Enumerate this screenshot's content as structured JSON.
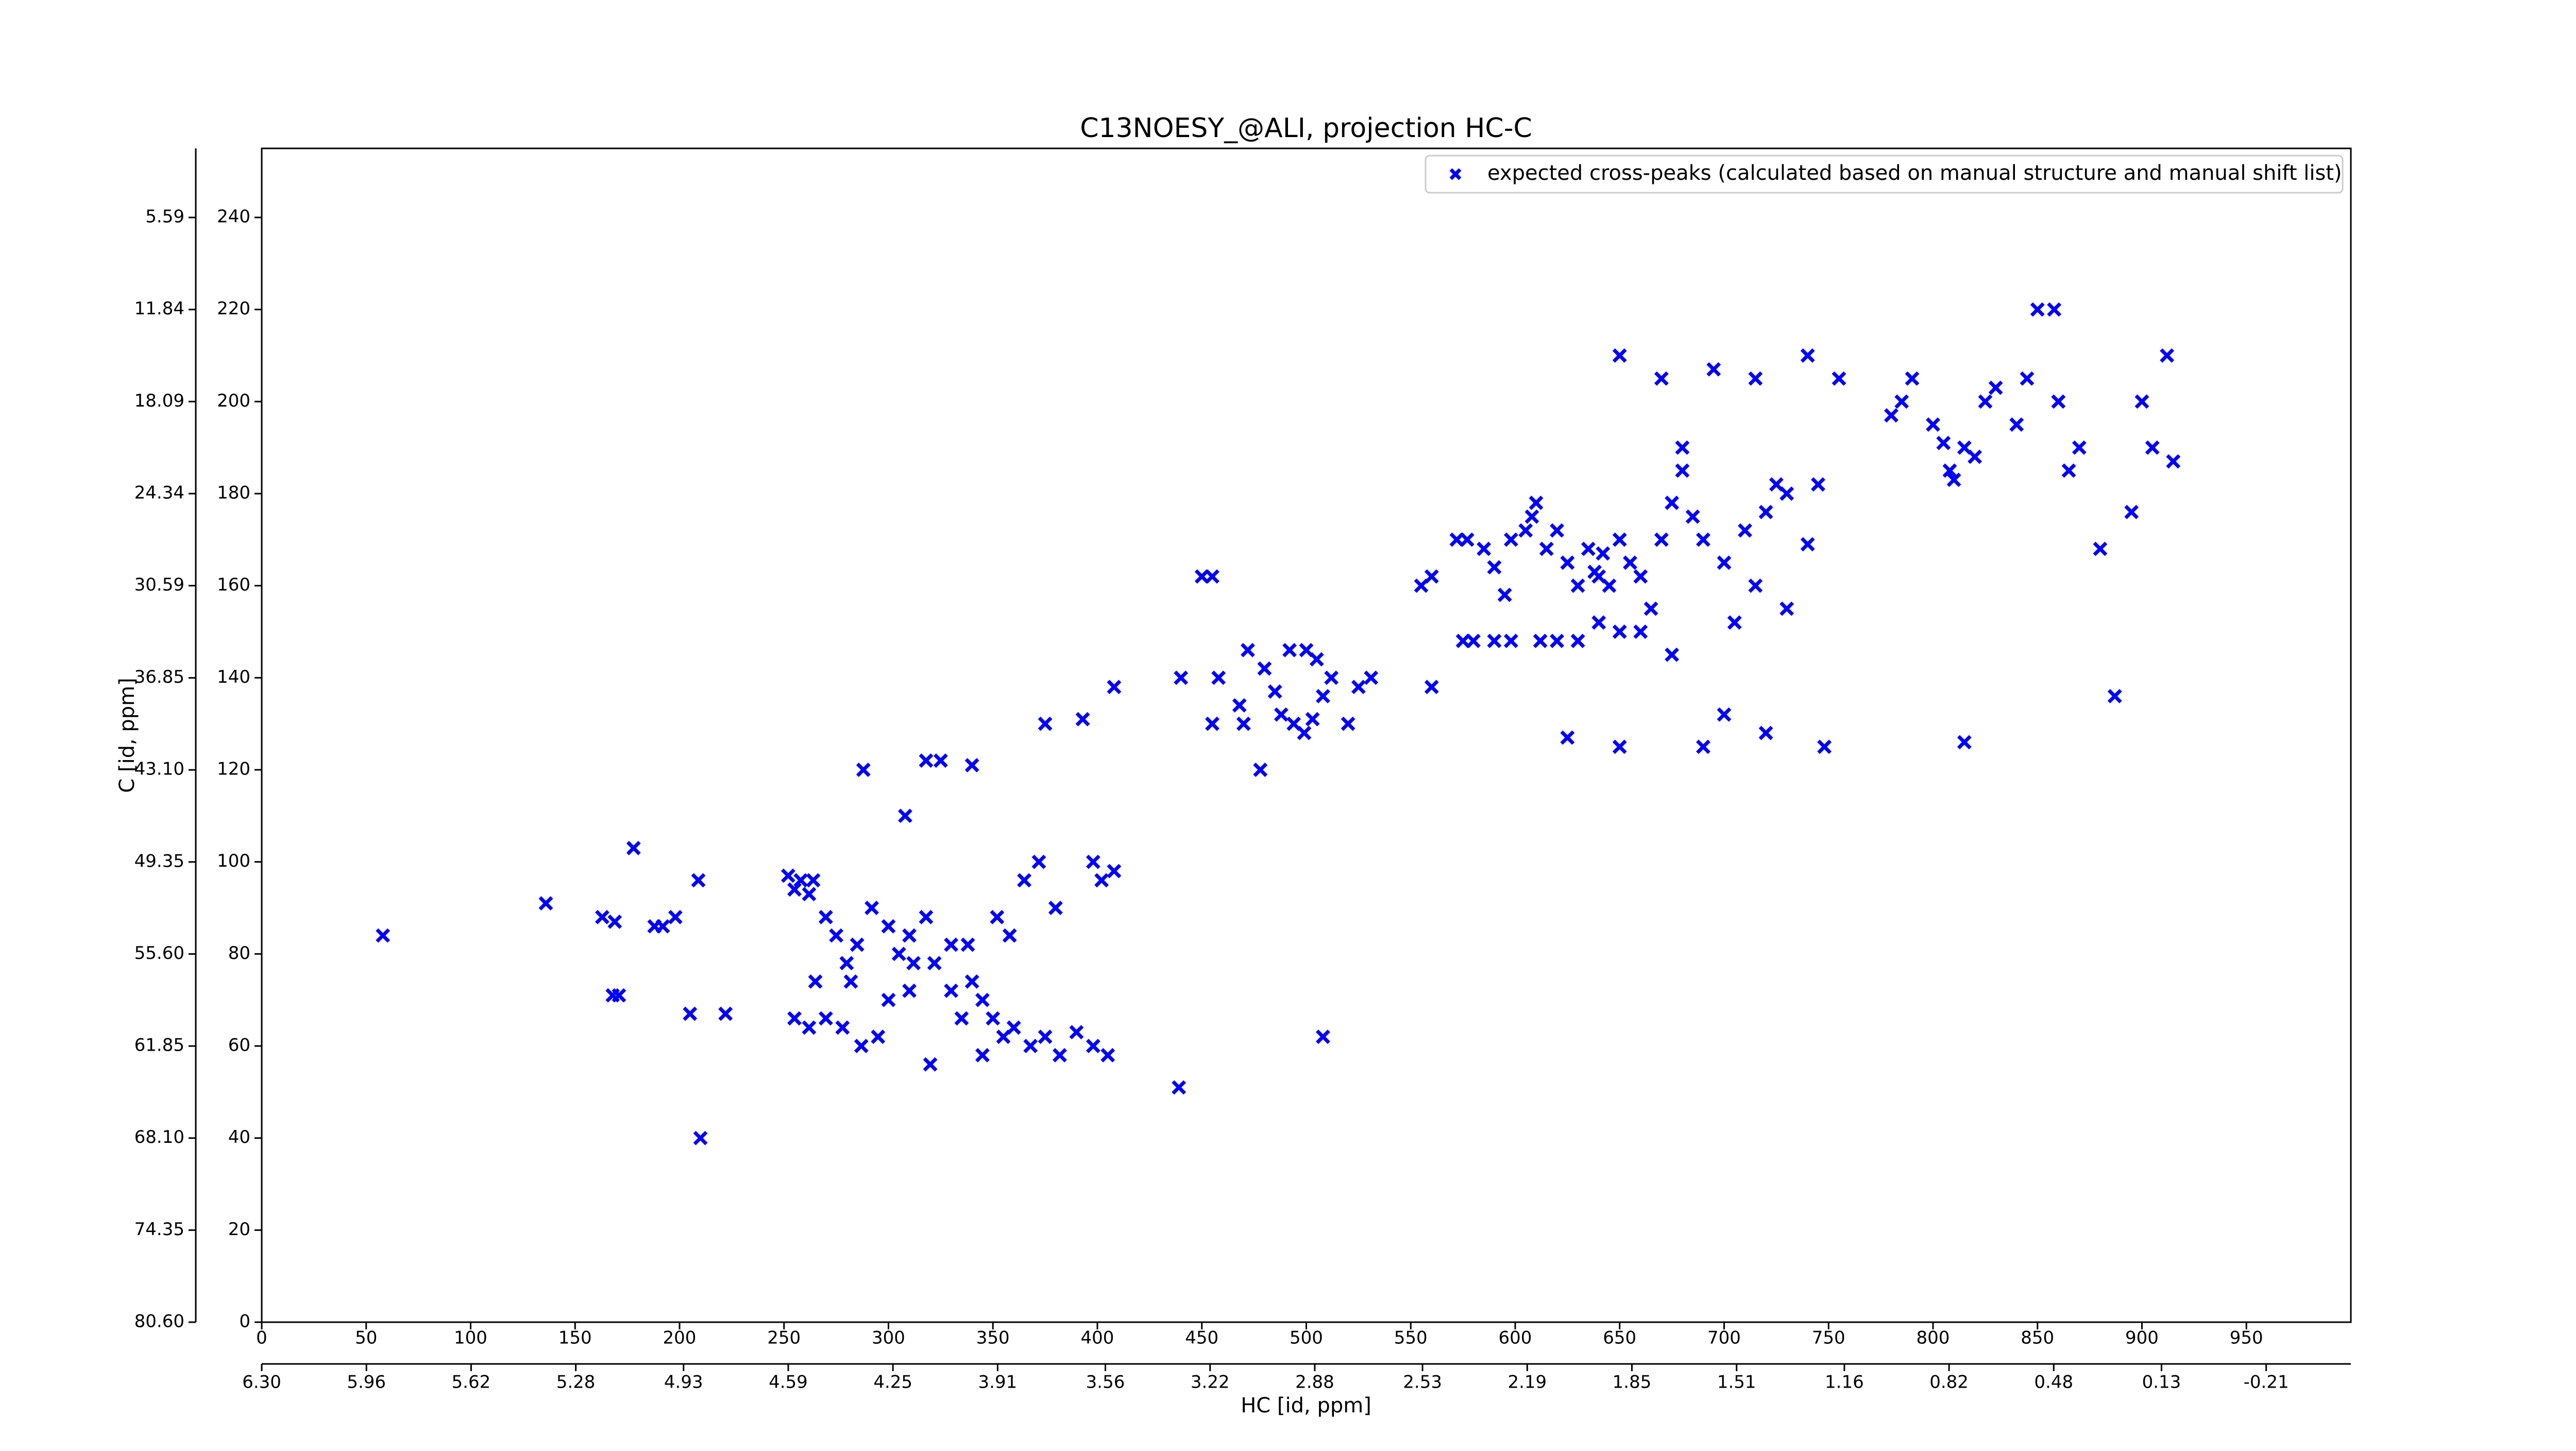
{
  "chart_data": {
    "type": "scatter",
    "title": "C13NOESY_@ALI, projection HC-C",
    "x_label": "HC [id, ppm]",
    "y_label": "C [id, ppm]",
    "xlim": [
      0,
      1000
    ],
    "ylim": [
      0,
      255
    ],
    "xticks": [
      0,
      50,
      100,
      150,
      200,
      250,
      300,
      350,
      400,
      450,
      500,
      550,
      600,
      650,
      700,
      750,
      800,
      850,
      900,
      950
    ],
    "yticks": [
      0,
      20,
      40,
      60,
      80,
      100,
      120,
      140,
      160,
      180,
      200,
      220,
      240
    ],
    "x2lim": [
      6.3,
      -0.485
    ],
    "x2ticks": [
      {
        "value": 6.3,
        "label": "6.30"
      },
      5.96,
      5.62,
      5.28,
      4.93,
      4.59,
      4.25,
      3.91,
      3.56,
      3.22,
      2.88,
      2.53,
      2.19,
      1.85,
      1.51,
      1.16,
      0.82,
      0.48,
      0.13,
      -0.21
    ],
    "y2lim": [
      80.6,
      0.9
    ],
    "y2ticks": [
      {
        "value": 80.6,
        "label": "80.60"
      },
      74.35,
      {
        "value": 68.1,
        "label": "68.10"
      },
      61.85,
      {
        "value": 55.6,
        "label": "55.60"
      },
      49.35,
      {
        "value": 43.1,
        "label": "43.10"
      },
      36.85,
      30.59,
      24.34,
      18.09,
      11.84,
      5.59
    ],
    "legend": "upper right",
    "series": [
      {
        "name": "expected cross-peaks (calculated based on manual structure and manual shift list)",
        "color": "#0000ff",
        "x": [
          58,
          136,
          163,
          169,
          168,
          171,
          178,
          188,
          192,
          198,
          205,
          209,
          222,
          210,
          252,
          255,
          258,
          262,
          264,
          270,
          275,
          280,
          285,
          292,
          300,
          305,
          310,
          318,
          322,
          330,
          338,
          340,
          345,
          350,
          360,
          368,
          375,
          382,
          390,
          398,
          405,
          255,
          262,
          270,
          278,
          287,
          295,
          300,
          310,
          320,
          335,
          345,
          355,
          365,
          372,
          380,
          398,
          402,
          408,
          265,
          282,
          312,
          330,
          352,
          358,
          288,
          308,
          318,
          325,
          340,
          375,
          393,
          408,
          440,
          439,
          450,
          455,
          458,
          472,
          480,
          485,
          492,
          500,
          505,
          508,
          512,
          520,
          525,
          470,
          488,
          494,
          499,
          503,
          531,
          478,
          455,
          468,
          508,
          555,
          560,
          572,
          577,
          585,
          590,
          595,
          598,
          605,
          608,
          610,
          615,
          620,
          625,
          630,
          635,
          638,
          640,
          642,
          645,
          650,
          655,
          660,
          665,
          670,
          675,
          680,
          685,
          690,
          700,
          710,
          715,
          720,
          725,
          730,
          740,
          745,
          575,
          580,
          590,
          598,
          612,
          620,
          630,
          640,
          650,
          660,
          675,
          705,
          730,
          560,
          625,
          650,
          690,
          700,
          720,
          748,
          815,
          650,
          670,
          695,
          715,
          740,
          755,
          680,
          780,
          785,
          790,
          800,
          805,
          808,
          810,
          815,
          820,
          825,
          830,
          840,
          845,
          850,
          858,
          860,
          865,
          870,
          880,
          900,
          905,
          915,
          912,
          895,
          887
        ],
        "values": [
          84,
          91,
          88,
          87,
          71,
          71,
          103,
          86,
          86,
          88,
          67,
          96,
          67,
          40,
          97,
          94,
          96,
          93,
          96,
          88,
          84,
          78,
          82,
          90,
          86,
          80,
          84,
          88,
          78,
          72,
          82,
          74,
          70,
          66,
          64,
          60,
          62,
          58,
          63,
          60,
          58,
          66,
          64,
          66,
          64,
          60,
          62,
          70,
          72,
          56,
          66,
          58,
          62,
          96,
          100,
          90,
          100,
          96,
          98,
          74,
          74,
          78,
          82,
          88,
          84,
          120,
          110,
          122,
          122,
          121,
          130,
          131,
          138,
          140,
          51,
          162,
          162,
          140,
          146,
          142,
          137,
          146,
          146,
          144,
          136,
          140,
          130,
          138,
          130,
          132,
          130,
          128,
          131,
          140,
          120,
          130,
          134,
          62,
          160,
          162,
          170,
          170,
          168,
          164,
          158,
          170,
          172,
          175,
          178,
          168,
          172,
          165,
          160,
          168,
          163,
          162,
          167,
          160,
          170,
          165,
          162,
          155,
          170,
          178,
          185,
          175,
          170,
          165,
          172,
          160,
          176,
          182,
          180,
          169,
          182,
          148,
          148,
          148,
          148,
          148,
          148,
          148,
          152,
          150,
          150,
          145,
          152,
          155,
          138,
          127,
          125,
          125,
          132,
          128,
          125,
          126,
          210,
          205,
          207,
          205,
          210,
          205,
          190,
          197,
          200,
          205,
          195,
          191,
          185,
          183,
          190,
          188,
          200,
          203,
          195,
          205,
          220,
          220,
          200,
          185,
          190,
          168,
          200,
          190,
          187,
          210,
          176,
          136
        ]
      }
    ]
  }
}
